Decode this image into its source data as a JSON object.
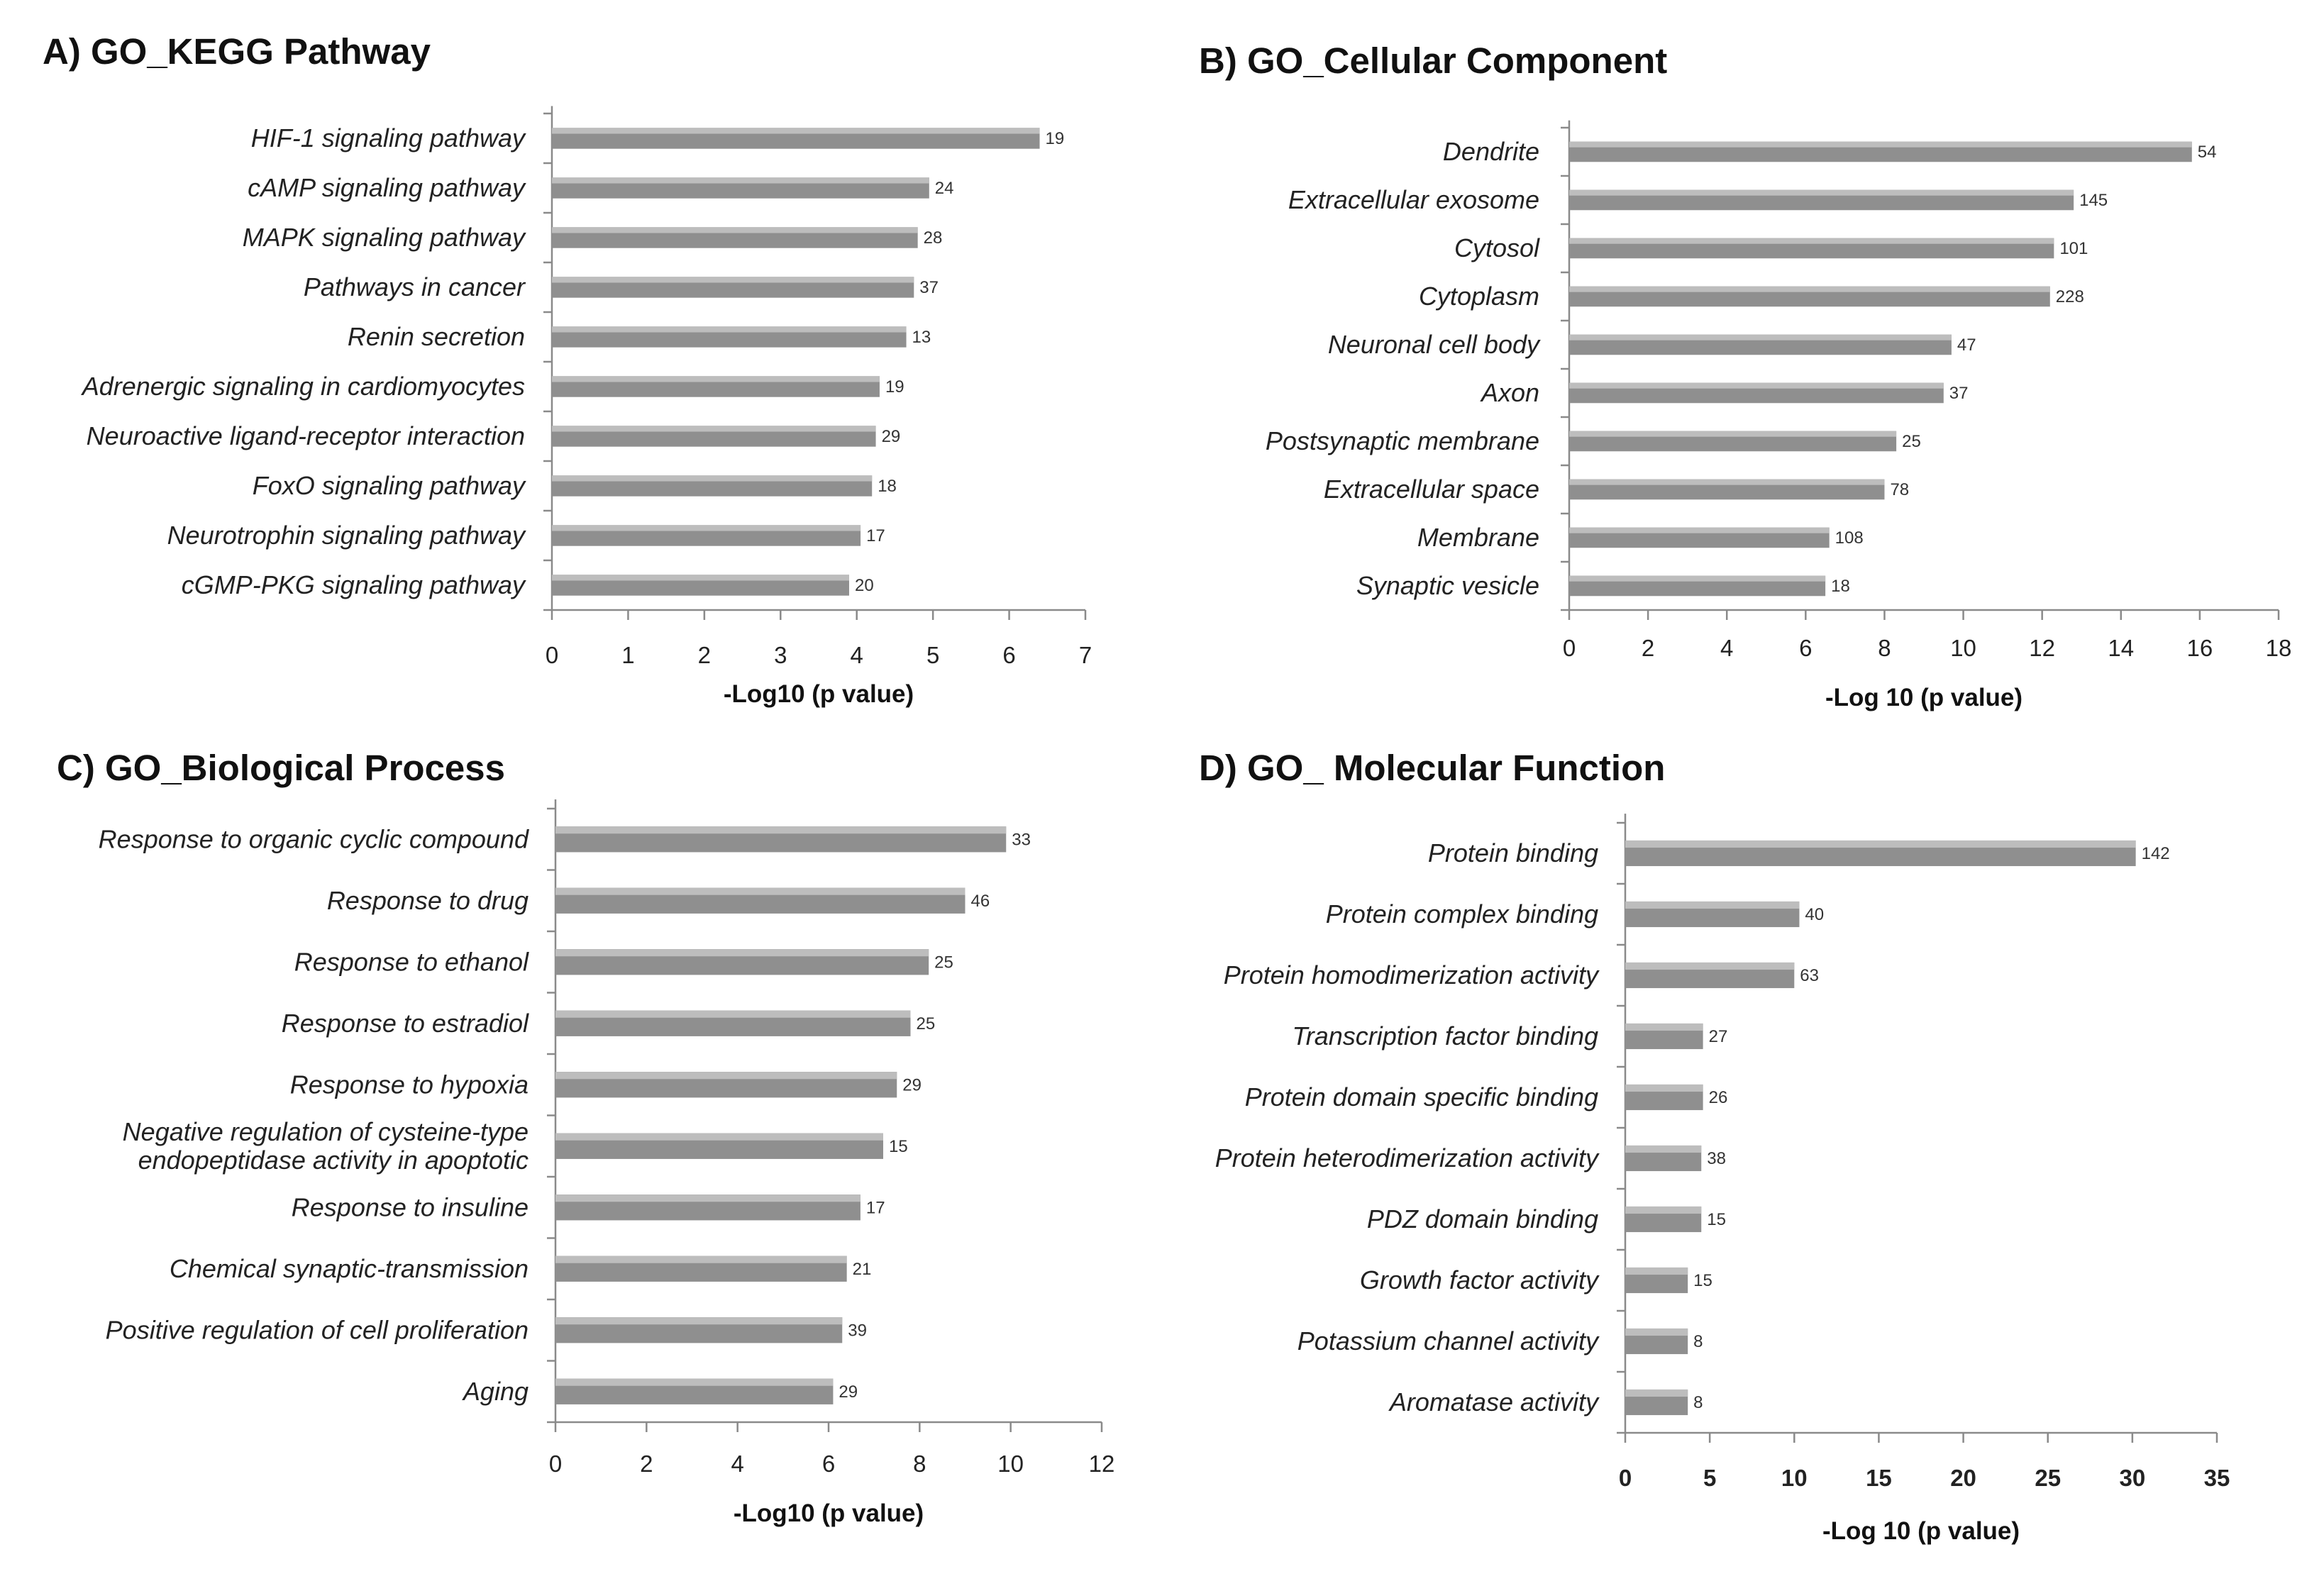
{
  "colors": {
    "bar_fill": "#8f8f8f",
    "bar_highlight": "#bdbdbd",
    "axis": "#8a8a8a",
    "text": "#222222"
  },
  "chart_data": [
    {
      "type": "bar",
      "orientation": "horizontal",
      "title": "A) GO_KEGG Pathway",
      "xlabel": "-Log10 (p value)",
      "ylabel": "",
      "xlim": [
        0,
        7
      ],
      "xticks": [
        0,
        1,
        2,
        3,
        4,
        5,
        6,
        7
      ],
      "grid": false,
      "categories": [
        "HIF-1 signaling pathway",
        "cAMP signaling pathway",
        "MAPK signaling pathway",
        "Pathways in cancer",
        "Renin secretion",
        "Adrenergic signaling in cardiomyocytes",
        "Neuroactive ligand-receptor interaction",
        "FoxO signaling pathway",
        "Neurotrophin signaling pathway",
        "cGMP-PKG signaling pathway"
      ],
      "values": [
        6.4,
        4.95,
        4.8,
        4.75,
        4.65,
        4.3,
        4.25,
        4.2,
        4.05,
        3.9
      ],
      "data_labels": [
        "19",
        "24",
        "28",
        "37",
        "13",
        "19",
        "29",
        "18",
        "17",
        "20"
      ]
    },
    {
      "type": "bar",
      "orientation": "horizontal",
      "title": "B) GO_Cellular Component",
      "xlabel": "-Log 10 (p value)",
      "ylabel": "",
      "xlim": [
        0,
        18
      ],
      "xticks": [
        0,
        2,
        4,
        6,
        8,
        10,
        12,
        14,
        16,
        18
      ],
      "grid": false,
      "categories": [
        "Dendrite",
        "Extracellular exosome",
        "Cytosol",
        "Cytoplasm",
        "Neuronal cell body",
        "Axon",
        "Postsynaptic membrane",
        "Extracellular space",
        "Membrane",
        "Synaptic vesicle"
      ],
      "values": [
        15.8,
        12.8,
        12.3,
        12.2,
        9.7,
        9.5,
        8.3,
        8.0,
        6.6,
        6.5
      ],
      "data_labels": [
        "54",
        "145",
        "101",
        "228",
        "47",
        "37",
        "25",
        "78",
        "108",
        "18"
      ]
    },
    {
      "type": "bar",
      "orientation": "horizontal",
      "title": "C) GO_Biological Process",
      "xlabel": "-Log10 (p value)",
      "ylabel": "",
      "xlim": [
        0,
        12
      ],
      "xticks": [
        0,
        2,
        4,
        6,
        8,
        10,
        12
      ],
      "grid": false,
      "categories": [
        "Response to organic cyclic compound",
        "Response to drug",
        "Response to ethanol",
        "Response to estradiol",
        "Response to hypoxia",
        "Negative regulation of cysteine-type endopeptidase activity in apoptotic",
        "Response to insuline",
        "Chemical synaptic-transmission",
        "Positive regulation of cell proliferation",
        "Aging"
      ],
      "values": [
        9.9,
        9.0,
        8.2,
        7.8,
        7.5,
        7.2,
        6.7,
        6.4,
        6.3,
        6.1
      ],
      "data_labels": [
        "33",
        "46",
        "25",
        "25",
        "29",
        "15",
        "17",
        "21",
        "39",
        "29"
      ]
    },
    {
      "type": "bar",
      "orientation": "horizontal",
      "title": "D) GO_ Molecular Function",
      "xlabel": "-Log 10 (p value)",
      "ylabel": "",
      "xlim": [
        0,
        35
      ],
      "xticks": [
        0,
        5,
        10,
        15,
        20,
        25,
        30,
        35
      ],
      "grid": false,
      "categories": [
        "Protein binding",
        "Protein complex binding",
        "Protein homodimerization activity",
        "Transcription factor  binding",
        "Protein domain specific binding",
        "Protein heterodimerization activity",
        "PDZ domain binding",
        "Growth factor activity",
        "Potassium channel activity",
        "Aromatase activity"
      ],
      "values": [
        30.2,
        10.3,
        10.0,
        4.6,
        4.6,
        4.5,
        4.5,
        3.7,
        3.7,
        3.7
      ],
      "data_labels": [
        "142",
        "40",
        "63",
        "27",
        "26",
        "38",
        "15",
        "15",
        "8",
        "8"
      ]
    }
  ]
}
